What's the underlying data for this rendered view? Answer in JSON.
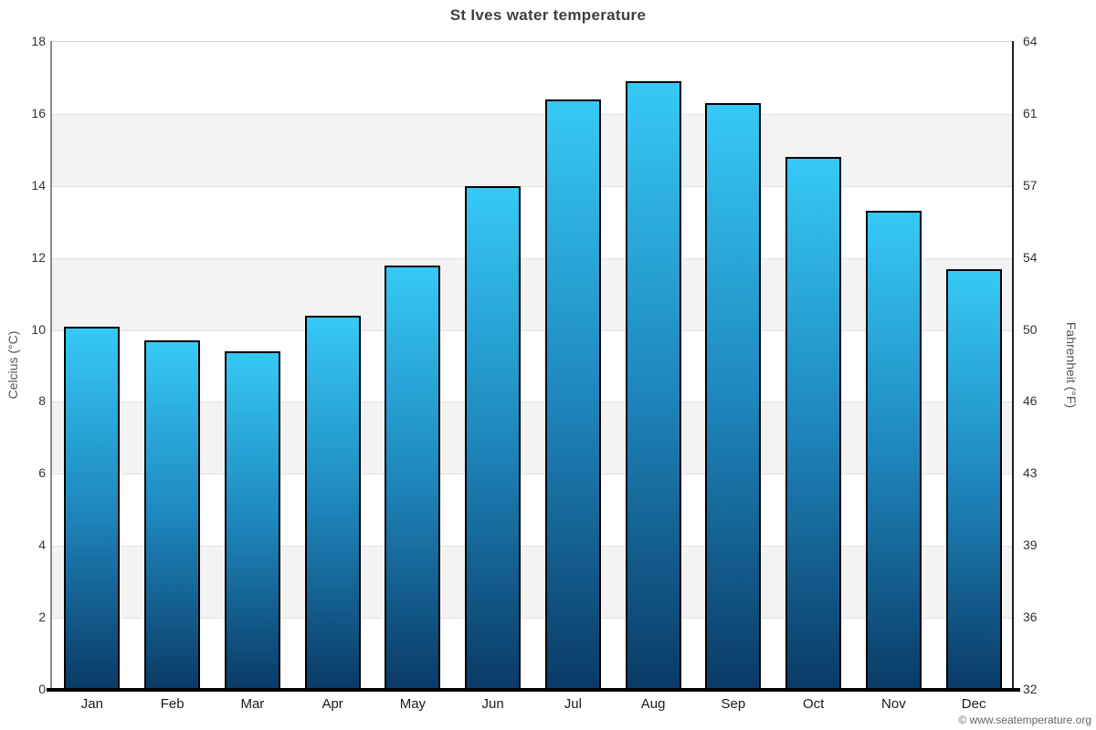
{
  "credit": "© www.seatemperature.org",
  "chart_data": {
    "type": "bar",
    "title": "St Ives water temperature",
    "categories": [
      "Jan",
      "Feb",
      "Mar",
      "Apr",
      "May",
      "Jun",
      "Jul",
      "Aug",
      "Sep",
      "Oct",
      "Nov",
      "Dec"
    ],
    "values": [
      10.1,
      9.7,
      9.4,
      10.4,
      11.8,
      14.0,
      16.4,
      16.9,
      16.3,
      14.8,
      13.3,
      11.7
    ],
    "unit": "°C",
    "ylabel_left": "Celcius (°C)",
    "ylabel_right": "Fahrenheit (°F)",
    "yticks_left": [
      0,
      2,
      4,
      6,
      8,
      10,
      12,
      14,
      16,
      18
    ],
    "yticks_right": [
      32,
      36,
      39,
      43,
      46,
      50,
      54,
      57,
      61,
      64
    ],
    "ylim": [
      0,
      18
    ],
    "legend": "none",
    "grid": "alternating-horizontal-bands",
    "colors": {
      "bar_top": "#36c9f6",
      "bar_mid": "#1e87bd",
      "bar_bottom": "#0a3a66",
      "bar_border": "#000000",
      "band_light": "#ffffff",
      "band_shade": "#f3f3f3",
      "band_edge": "#e2e2e2"
    }
  }
}
